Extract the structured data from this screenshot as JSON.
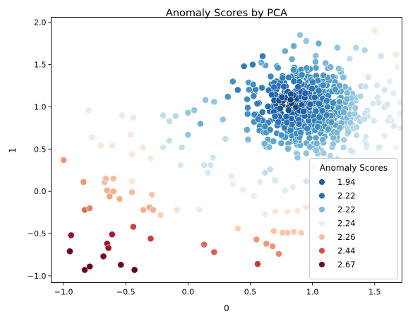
{
  "chart_data": {
    "type": "scatter",
    "title": "Anomaly Scores by PCA",
    "xlabel": "0",
    "ylabel": "1",
    "xlim": [
      -1.1,
      1.72
    ],
    "ylim": [
      -1.08,
      2.06
    ],
    "xticks": [
      -1.0,
      -0.5,
      0.0,
      0.5,
      1.0,
      1.5
    ],
    "xtick_labels": [
      "−1.0",
      "−0.5",
      "0.0",
      "0.5",
      "1.0",
      "1.5"
    ],
    "yticks": [
      -1.0,
      -0.5,
      0.0,
      0.5,
      1.0,
      1.5,
      2.0
    ],
    "ytick_labels": [
      "−1.0",
      "−0.5",
      "0.0",
      "0.5",
      "1.0",
      "1.5",
      "2.0"
    ],
    "grid": false,
    "legend": {
      "title": "Anomaly Scores",
      "placement": "lower-right",
      "entries": [
        {
          "label": "1.94",
          "color": "#235e9c"
        },
        {
          "label": "2.22",
          "color": "#2a71b2"
        },
        {
          "label": "2.22",
          "color": "#7fb8d9"
        },
        {
          "label": "2.24",
          "color": "#eeeeee"
        },
        {
          "label": "2.26",
          "color": "#f7c0a2"
        },
        {
          "label": "2.44",
          "color": "#cf4f45"
        },
        {
          "label": "2.67",
          "color": "#6f0b20"
        }
      ]
    },
    "colormap": [
      "#053061",
      "#2166ac",
      "#4393c3",
      "#92c5de",
      "#d1e5f0",
      "#f2f2f2",
      "#fddbc7",
      "#f4a582",
      "#d6604d",
      "#b2182b",
      "#67001f"
    ],
    "dense_cluster": {
      "center_x": 0.95,
      "center_y": 0.98,
      "count": 620
    },
    "points": [
      [
        -1.0,
        0.37,
        0.72
      ],
      [
        -0.94,
        -0.52,
        0.93
      ],
      [
        -0.95,
        -0.71,
        1.0
      ],
      [
        -0.83,
        -0.93,
        1.0
      ],
      [
        -0.79,
        -0.89,
        1.0
      ],
      [
        -0.83,
        -0.22,
        0.78
      ],
      [
        -0.79,
        -0.2,
        0.75
      ],
      [
        -0.84,
        0.11,
        0.72
      ],
      [
        -0.65,
        -0.62,
        0.93
      ],
      [
        -0.64,
        -0.67,
        0.93
      ],
      [
        -0.61,
        -0.51,
        0.9
      ],
      [
        -0.68,
        -0.77,
        0.97
      ],
      [
        -0.54,
        -0.87,
        1.0
      ],
      [
        -0.43,
        -0.93,
        1.0
      ],
      [
        -0.44,
        -0.42,
        0.84
      ],
      [
        -0.3,
        -0.56,
        0.85
      ],
      [
        -0.65,
        0.01,
        0.68
      ],
      [
        -0.63,
        -0.06,
        0.7
      ],
      [
        -0.6,
        0.0,
        0.68
      ],
      [
        -0.67,
        0.11,
        0.66
      ],
      [
        -0.66,
        0.15,
        0.66
      ],
      [
        -0.6,
        0.15,
        0.66
      ],
      [
        -0.55,
        -0.09,
        0.68
      ],
      [
        -0.45,
        -0.01,
        0.66
      ],
      [
        -0.36,
        -0.22,
        0.68
      ],
      [
        -0.31,
        -0.19,
        0.68
      ],
      [
        -0.28,
        -0.22,
        0.68
      ],
      [
        -0.29,
        -0.04,
        0.64
      ],
      [
        -0.22,
        -0.28,
        0.62
      ],
      [
        -0.09,
        -0.22,
        0.58
      ],
      [
        0.09,
        -0.22,
        0.55
      ],
      [
        0.13,
        -0.63,
        0.78
      ],
      [
        0.21,
        -0.72,
        0.8
      ],
      [
        0.56,
        -0.86,
        0.85
      ],
      [
        0.55,
        -0.57,
        0.72
      ],
      [
        0.63,
        -0.62,
        0.72
      ],
      [
        0.68,
        -0.65,
        0.72
      ],
      [
        0.73,
        -0.74,
        0.74
      ],
      [
        0.69,
        -0.47,
        0.65
      ],
      [
        0.76,
        -0.49,
        0.64
      ],
      [
        0.8,
        -0.49,
        0.64
      ],
      [
        0.85,
        -0.48,
        0.63
      ],
      [
        0.91,
        -0.49,
        0.63
      ],
      [
        0.4,
        -0.44,
        0.62
      ],
      [
        -0.8,
        0.96,
        0.55
      ],
      [
        -0.77,
        0.64,
        0.55
      ],
      [
        -0.7,
        0.54,
        0.55
      ],
      [
        -0.61,
        0.54,
        0.55
      ],
      [
        -0.53,
        0.9,
        0.55
      ],
      [
        -0.46,
        0.67,
        0.55
      ],
      [
        -0.44,
        0.87,
        0.55
      ],
      [
        -0.45,
        0.44,
        0.55
      ],
      [
        -0.36,
        0.52,
        0.55
      ],
      [
        -0.3,
        0.39,
        0.55
      ],
      [
        -0.2,
        0.52,
        0.4
      ],
      [
        -0.15,
        0.83,
        0.38
      ],
      [
        -0.1,
        0.89,
        0.36
      ],
      [
        -0.05,
        0.52,
        0.38
      ],
      [
        -0.06,
        0.31,
        0.42
      ],
      [
        0.0,
        0.93,
        0.3
      ],
      [
        0.05,
        0.96,
        0.3
      ],
      [
        0.1,
        0.8,
        0.25
      ],
      [
        0.13,
        0.31,
        0.4
      ],
      [
        0.16,
        0.22,
        0.42
      ],
      [
        0.18,
        0.31,
        0.4
      ],
      [
        0.2,
        0.4,
        0.4
      ],
      [
        0.14,
        1.08,
        0.3
      ],
      [
        0.21,
        1.06,
        0.3
      ],
      [
        0.28,
        0.85,
        0.3
      ],
      [
        0.3,
        0.62,
        0.38
      ],
      [
        0.35,
        0.18,
        0.45
      ],
      [
        0.36,
        0.09,
        0.48
      ],
      [
        0.44,
        0.02,
        0.48
      ],
      [
        0.58,
        0.11,
        0.45
      ],
      [
        0.53,
        -0.06,
        0.52
      ],
      [
        0.62,
        -0.27,
        0.55
      ],
      [
        0.7,
        -0.24,
        0.55
      ],
      [
        0.8,
        -0.24,
        0.55
      ],
      [
        0.88,
        -0.23,
        0.55
      ],
      [
        0.95,
        -0.19,
        0.55
      ],
      [
        1.0,
        -0.22,
        0.55
      ],
      [
        1.05,
        -0.2,
        0.55
      ],
      [
        0.78,
        0.01,
        0.45
      ],
      [
        0.7,
        0.13,
        0.42
      ],
      [
        0.84,
        0.05,
        0.45
      ],
      [
        1.05,
        0.04,
        0.45
      ],
      [
        1.12,
        -0.1,
        0.5
      ],
      [
        0.62,
        0.22,
        0.38
      ],
      [
        0.66,
        0.26,
        0.38
      ],
      [
        -0.2,
        0.9,
        0.38
      ],
      [
        -0.15,
        0.6,
        0.38
      ],
      [
        0.0,
        0.67,
        0.3
      ],
      [
        -0.45,
        0.12,
        0.55
      ],
      [
        0.36,
        1.3,
        0.2
      ],
      [
        0.32,
        1.12,
        0.2
      ],
      [
        0.4,
        1.2,
        0.15
      ],
      [
        1.5,
        1.9,
        0.55
      ],
      [
        1.67,
        1.62,
        0.55
      ],
      [
        1.68,
        1.47,
        0.5
      ],
      [
        1.62,
        1.3,
        0.45
      ],
      [
        1.65,
        1.16,
        0.45
      ],
      [
        1.7,
        1.05,
        0.5
      ],
      [
        1.7,
        0.92,
        0.5
      ],
      [
        1.7,
        0.75,
        0.5
      ],
      [
        1.67,
        0.52,
        0.5
      ],
      [
        1.58,
        0.66,
        0.45
      ],
      [
        1.62,
        0.88,
        0.45
      ],
      [
        1.58,
        1.2,
        0.4
      ],
      [
        1.55,
        1.6,
        0.4
      ],
      [
        1.42,
        1.67,
        0.35
      ],
      [
        1.35,
        1.7,
        0.35
      ],
      [
        1.2,
        1.7,
        0.3
      ],
      [
        0.9,
        1.85,
        0.3
      ],
      [
        0.95,
        1.78,
        0.3
      ],
      [
        1.05,
        1.75,
        0.25
      ],
      [
        0.85,
        1.72,
        0.25
      ],
      [
        0.78,
        1.66,
        0.25
      ],
      [
        0.6,
        1.6,
        0.15
      ],
      [
        0.52,
        1.5,
        0.15
      ],
      [
        0.45,
        1.48,
        0.15
      ],
      [
        1.1,
        0.35,
        0.35
      ],
      [
        1.2,
        0.38,
        0.35
      ],
      [
        0.95,
        0.12,
        0.4
      ],
      [
        1.25,
        0.52,
        0.35
      ],
      [
        0.88,
        0.4,
        0.3
      ],
      [
        0.95,
        0.45,
        0.3
      ],
      [
        1.0,
        0.3,
        0.35
      ],
      [
        1.15,
        0.25,
        0.4
      ]
    ]
  }
}
